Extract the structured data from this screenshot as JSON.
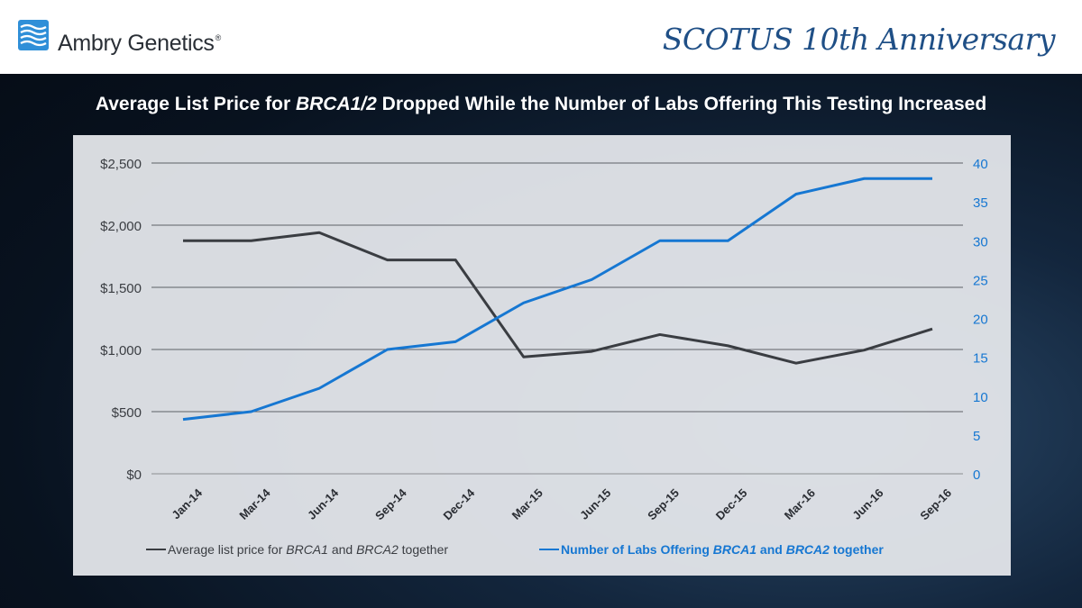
{
  "header": {
    "brand": "Ambry Genetics",
    "brand_reg": "®",
    "event": "SCOTUS 10th Anniversary"
  },
  "title": {
    "before": "Average List Price for ",
    "gene": "BRCA1/2",
    "after": " Dropped While the Number of Labs Offering This Testing Increased"
  },
  "legend": {
    "price": {
      "before": "Average list price for ",
      "gene1": "BRCA1",
      "mid": " and ",
      "gene2": "BRCA2",
      "after": " together"
    },
    "labs": {
      "before": "Number of Labs Offering ",
      "gene1": "BRCA1",
      "mid": " and ",
      "gene2": "BRCA2",
      "after": " together"
    }
  },
  "colors": {
    "price_line": "#3a3d42",
    "labs_line": "#1677d2",
    "right_axis_text": "#1677d2",
    "brand_blue": "#1f4f86"
  },
  "chart_data": {
    "type": "line",
    "x": [
      "Jan-14",
      "Mar-14",
      "Jun-14",
      "Sep-14",
      "Dec-14",
      "Mar-15",
      "Jun-15",
      "Sep-15",
      "Dec-15",
      "Mar-16",
      "Jun-16",
      "Sep-16"
    ],
    "series": [
      {
        "name": "Average list price for BRCA1 and BRCA2 together",
        "axis": "left",
        "values": [
          1875,
          1875,
          1940,
          1720,
          1720,
          940,
          985,
          1120,
          1030,
          890,
          995,
          1165
        ]
      },
      {
        "name": "Number of Labs Offering BRCA1 and BRCA2 together",
        "axis": "right",
        "values": [
          7,
          8,
          11,
          16,
          17,
          22,
          25,
          30,
          30,
          36,
          38,
          38
        ]
      }
    ],
    "left_axis": {
      "ylim": [
        0,
        2500
      ],
      "ticks": [
        0,
        500,
        1000,
        1500,
        2000,
        2500
      ],
      "labels": [
        "$0",
        "$500",
        "$1,000",
        "$1,500",
        "$2,000",
        "$2,500"
      ]
    },
    "right_axis": {
      "ylim": [
        0,
        40
      ],
      "ticks": [
        0,
        5,
        10,
        15,
        20,
        25,
        30,
        35,
        40
      ],
      "labels": [
        "0",
        "5",
        "10",
        "15",
        "20",
        "25",
        "30",
        "35",
        "40"
      ]
    },
    "grid": true,
    "legend_position": "bottom"
  }
}
